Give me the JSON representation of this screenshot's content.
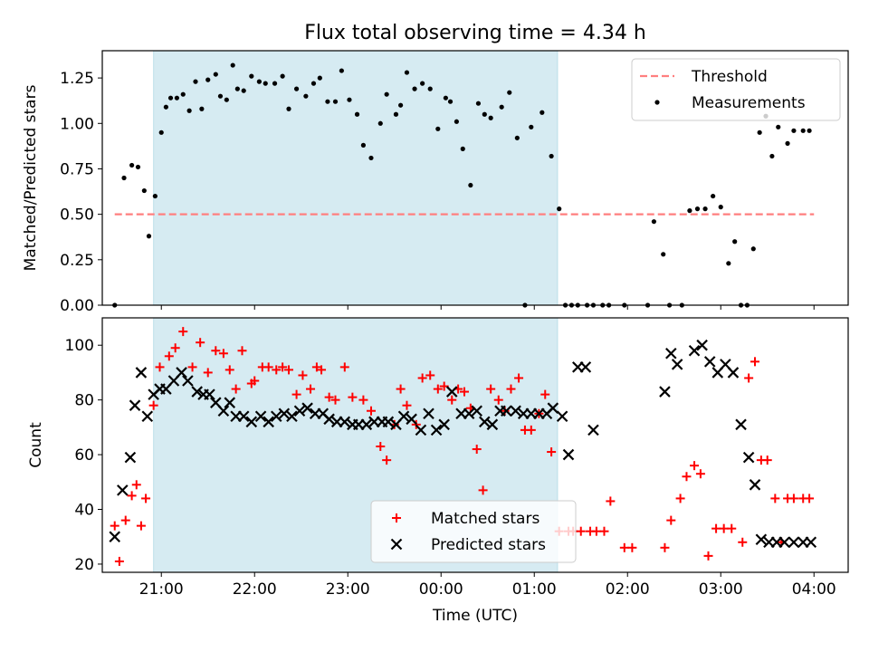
{
  "chart_data": [
    {
      "type": "line",
      "title": "Flux total observing time = 4.34 h",
      "xlabel": "",
      "ylabel": "Matched/Predicted stars",
      "ylim": [
        0,
        1.4
      ],
      "xlim": [
        "20:22",
        "04:22"
      ],
      "x_tick_labels": [],
      "y_ticks": [
        "0.00",
        "0.25",
        "0.50",
        "0.75",
        "1.00",
        "1.25"
      ],
      "highlight_span": [
        "20:55",
        "01:15"
      ],
      "highlight_color": "#add8e6",
      "grid": false,
      "legend": "top-right",
      "series": [
        {
          "name": "Threshold",
          "style": "dashed-line",
          "color": "#ff7f7f",
          "x": [
            "20:30",
            "04:00"
          ],
          "y": [
            0.5,
            0.5
          ]
        },
        {
          "name": "Measurements",
          "style": "scatter-dot",
          "color": "#000000",
          "x": [
            "20:30",
            "20:36",
            "20:41",
            "20:45",
            "20:49",
            "20:52",
            "20:56",
            "21:00",
            "21:03",
            "21:06",
            "21:10",
            "21:14",
            "21:18",
            "21:22",
            "21:26",
            "21:30",
            "21:35",
            "21:38",
            "21:42",
            "21:46",
            "21:49",
            "21:53",
            "21:58",
            "22:03",
            "22:07",
            "22:13",
            "22:18",
            "22:22",
            "22:27",
            "22:33",
            "22:38",
            "22:42",
            "22:47",
            "22:52",
            "22:56",
            "23:01",
            "23:06",
            "23:10",
            "23:15",
            "23:21",
            "23:25",
            "23:31",
            "23:34",
            "23:38",
            "23:43",
            "23:48",
            "23:53",
            "23:58",
            "24:03",
            "24:06",
            "24:10",
            "24:14",
            "24:19",
            "24:24",
            "24:28",
            "24:32",
            "24:39",
            "24:44",
            "24:49",
            "24:54",
            "24:58",
            "25:05",
            "25:11",
            "25:16",
            "25:20",
            "25:24",
            "25:28",
            "25:34",
            "25:38",
            "25:44",
            "25:48",
            "25:58",
            "26:13",
            "26:17",
            "26:23",
            "26:27",
            "26:35",
            "26:40",
            "26:45",
            "26:50",
            "26:55",
            "27:00",
            "27:05",
            "27:09",
            "27:13",
            "27:17",
            "27:21",
            "27:25",
            "27:29",
            "27:33",
            "27:37",
            "27:43",
            "27:47",
            "27:53",
            "27:57"
          ],
          "y": [
            0.0,
            0.7,
            0.77,
            0.76,
            0.63,
            0.38,
            0.6,
            0.95,
            1.09,
            1.14,
            1.14,
            1.16,
            1.07,
            1.23,
            1.08,
            1.24,
            1.27,
            1.15,
            1.13,
            1.32,
            1.19,
            1.18,
            1.26,
            1.23,
            1.22,
            1.22,
            1.26,
            1.08,
            1.19,
            1.15,
            1.22,
            1.25,
            1.12,
            1.12,
            1.29,
            1.13,
            1.05,
            0.88,
            0.81,
            1.0,
            1.16,
            1.05,
            1.1,
            1.28,
            1.19,
            1.22,
            1.19,
            0.97,
            1.14,
            1.12,
            1.01,
            0.86,
            0.66,
            1.11,
            1.05,
            1.03,
            1.09,
            1.17,
            0.92,
            0.0,
            0.98,
            1.06,
            0.82,
            0.53,
            0.0,
            0.0,
            0.0,
            0.0,
            0.0,
            0.0,
            0.0,
            0.0,
            0.0,
            0.46,
            0.28,
            0.0,
            0.0,
            0.52,
            0.53,
            0.53,
            0.6,
            0.54,
            0.23,
            0.35,
            0.0,
            0.0,
            0.31,
            0.95,
            1.04,
            0.82,
            0.98,
            0.89,
            0.96,
            0.96,
            0.96
          ]
        }
      ]
    },
    {
      "type": "scatter",
      "title": "",
      "xlabel": "Time (UTC)",
      "ylabel": "Count",
      "ylim": [
        17,
        110
      ],
      "xlim": [
        "20:22",
        "04:22"
      ],
      "x_tick_labels": [
        "21:00",
        "22:00",
        "23:00",
        "00:00",
        "01:00",
        "02:00",
        "03:00",
        "04:00"
      ],
      "y_ticks": [
        "20",
        "40",
        "60",
        "80",
        "100"
      ],
      "highlight_span": [
        "20:55",
        "01:15"
      ],
      "highlight_color": "#add8e6",
      "grid": false,
      "legend": "bottom-center",
      "series": [
        {
          "name": "Matched stars",
          "marker": "plus",
          "color": "#ff0000",
          "x": [
            "20:30",
            "20:33",
            "20:37",
            "20:41",
            "20:44",
            "20:47",
            "20:50",
            "20:55",
            "20:59",
            "21:05",
            "21:09",
            "21:14",
            "21:20",
            "21:25",
            "21:30",
            "21:35",
            "21:40",
            "21:44",
            "21:48",
            "21:52",
            "21:58",
            "22:00",
            "22:05",
            "22:09",
            "22:14",
            "22:18",
            "22:22",
            "22:27",
            "22:31",
            "22:36",
            "22:40",
            "22:43",
            "22:48",
            "22:52",
            "22:58",
            "23:03",
            "23:10",
            "23:15",
            "23:21",
            "23:25",
            "23:30",
            "23:34",
            "23:38",
            "23:44",
            "23:48",
            "23:53",
            "23:58",
            "24:02",
            "24:07",
            "24:11",
            "24:15",
            "24:19",
            "24:23",
            "24:27",
            "24:32",
            "24:37",
            "24:41",
            "24:45",
            "24:50",
            "24:54",
            "24:58",
            "25:03",
            "25:07",
            "25:11",
            "25:16",
            "25:22",
            "25:25",
            "25:30",
            "25:36",
            "25:40",
            "25:45",
            "25:49",
            "25:58",
            "26:03",
            "26:24",
            "26:28",
            "26:34",
            "26:38",
            "26:43",
            "26:47",
            "26:52",
            "26:57",
            "27:02",
            "27:07",
            "27:14",
            "27:18",
            "27:22",
            "27:26",
            "27:30",
            "27:35",
            "27:39",
            "27:43",
            "27:47",
            "27:53",
            "27:57"
          ],
          "y": [
            34,
            21,
            36,
            45,
            49,
            34,
            44,
            78,
            92,
            96,
            99,
            105,
            92,
            101,
            90,
            98,
            97,
            91,
            84,
            98,
            86,
            87,
            92,
            92,
            91,
            92,
            91,
            82,
            89,
            84,
            92,
            91,
            81,
            80,
            92,
            81,
            80,
            76,
            63,
            58,
            71,
            84,
            78,
            71,
            88,
            89,
            84,
            85,
            80,
            84,
            83,
            77,
            62,
            47,
            84,
            80,
            76,
            84,
            88,
            69,
            69,
            75,
            82,
            61,
            32,
            32,
            32,
            32,
            32,
            32,
            32,
            43,
            26,
            26,
            26,
            36,
            44,
            52,
            56,
            53,
            23,
            33,
            33,
            33,
            28,
            88,
            94,
            58,
            58,
            44,
            28,
            44,
            44,
            44,
            44
          ]
        },
        {
          "name": "Predicted stars",
          "marker": "x",
          "color": "#000000",
          "x": [
            "20:30",
            "20:35",
            "20:40",
            "20:43",
            "20:47",
            "20:51",
            "20:55",
            "20:59",
            "21:03",
            "21:08",
            "21:13",
            "21:17",
            "21:23",
            "21:27",
            "21:31",
            "21:35",
            "21:40",
            "21:44",
            "21:48",
            "21:53",
            "21:58",
            "22:04",
            "22:09",
            "22:14",
            "22:19",
            "22:24",
            "22:29",
            "22:34",
            "22:39",
            "22:44",
            "22:48",
            "22:53",
            "22:58",
            "23:03",
            "23:07",
            "23:12",
            "23:17",
            "23:22",
            "23:26",
            "23:31",
            "23:36",
            "23:41",
            "23:47",
            "23:52",
            "23:57",
            "24:02",
            "24:07",
            "24:13",
            "24:18",
            "24:23",
            "24:28",
            "24:33",
            "24:38",
            "24:42",
            "24:48",
            "24:53",
            "24:58",
            "25:03",
            "25:08",
            "25:12",
            "25:18",
            "25:22",
            "25:28",
            "25:33",
            "25:38",
            "26:24",
            "26:28",
            "26:32",
            "26:43",
            "26:48",
            "26:53",
            "26:58",
            "27:03",
            "27:08",
            "27:13",
            "27:18",
            "27:22",
            "27:26",
            "27:31",
            "27:36",
            "27:41",
            "27:47",
            "27:53",
            "27:58"
          ],
          "y": [
            30,
            47,
            59,
            78,
            90,
            74,
            82,
            84,
            84,
            87,
            90,
            87,
            83,
            82,
            82,
            79,
            76,
            79,
            74,
            74,
            72,
            74,
            72,
            74,
            75,
            74,
            76,
            77,
            75,
            75,
            73,
            72,
            72,
            71,
            71,
            71,
            72,
            72,
            72,
            71,
            74,
            73,
            69,
            75,
            69,
            71,
            83,
            75,
            75,
            76,
            72,
            71,
            76,
            76,
            76,
            75,
            75,
            75,
            75,
            77,
            74,
            60,
            92,
            92,
            69,
            83,
            97,
            93,
            98,
            100,
            94,
            90,
            93,
            90,
            71,
            59,
            49,
            29,
            28,
            28,
            28,
            28,
            28,
            28
          ]
        }
      ]
    }
  ]
}
